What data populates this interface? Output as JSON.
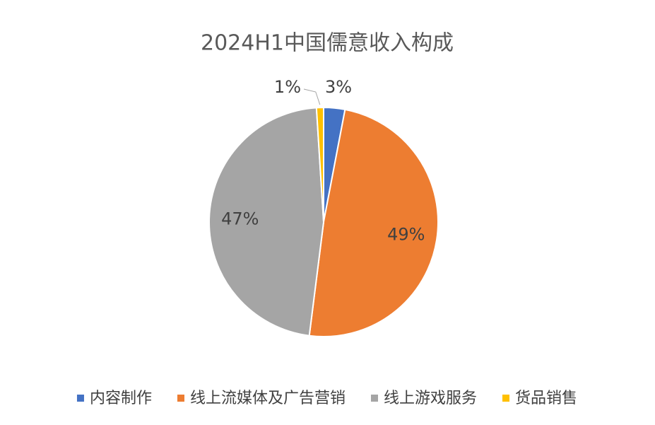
{
  "chart_data": {
    "type": "pie",
    "title": "2024H1中国儒意收入构成",
    "categories": [
      "内容制作",
      "线上流媒体及广告营销",
      "线上游戏服务",
      "货品销售"
    ],
    "values": [
      3,
      49,
      47,
      1
    ],
    "value_labels": [
      "3%",
      "49%",
      "47%",
      "1%"
    ],
    "colors": [
      "#4472c4",
      "#ed7d31",
      "#a5a5a5",
      "#ffc000"
    ],
    "legend": "bottom"
  }
}
